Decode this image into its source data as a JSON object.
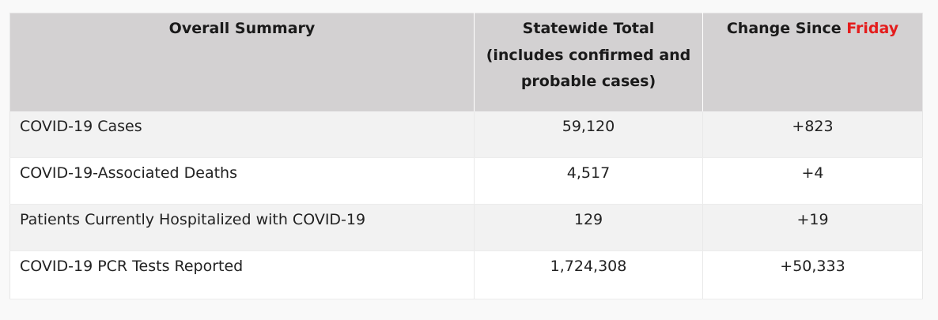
{
  "table": {
    "headers": {
      "col1": "Overall Summary",
      "col2_line1": "Statewide Total",
      "col2_line2": "(includes confirmed and",
      "col2_line3": "probable cases)",
      "col3_prefix": "Change Since ",
      "col3_highlight": "Friday"
    },
    "rows": [
      {
        "label": "COVID-19 Cases",
        "total": "59,120",
        "change": "+823"
      },
      {
        "label": "COVID-19-Associated Deaths",
        "total": "4,517",
        "change": "+4"
      },
      {
        "label": "Patients Currently Hospitalized with COVID-19",
        "total": "129",
        "change": "+19"
      },
      {
        "label": "COVID-19 PCR Tests Reported",
        "total": "1,724,308",
        "change": "+50,333"
      }
    ]
  },
  "colors": {
    "header_bg": "#d3d1d2",
    "highlight": "#e41c1c",
    "row_shade": "#f2f2f2"
  }
}
